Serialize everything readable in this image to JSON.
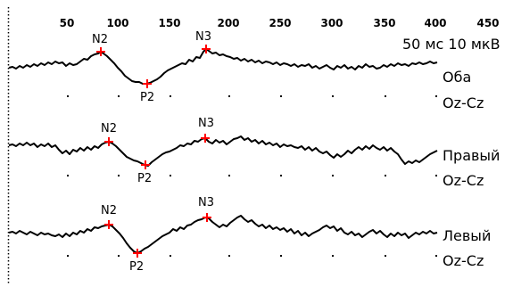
{
  "time_axis": {
    "ticks": [
      "50",
      "100",
      "150",
      "200",
      "250",
      "300",
      "350",
      "400",
      "450"
    ]
  },
  "scale_text": "50 мс 10 мкВ",
  "traces": [
    {
      "label": "Оба",
      "channel": "Oz-Cz",
      "peaks": [
        {
          "name": "N2",
          "color": "#cc0000"
        },
        {
          "name": "P2",
          "color": "#cc0000"
        },
        {
          "name": "N3",
          "color": "#cc0000"
        }
      ]
    },
    {
      "label": "Правый",
      "channel": "Oz-Cz",
      "peaks": [
        {
          "name": "N2",
          "color": "#cc0000"
        },
        {
          "name": "P2",
          "color": "#cc0000"
        },
        {
          "name": "N3",
          "color": "#cc0000"
        }
      ]
    },
    {
      "label": "Левый",
      "channel": "Oz-Cz",
      "peaks": [
        {
          "name": "N2",
          "color": "#cc0000"
        },
        {
          "name": "P2",
          "color": "#cc0000"
        },
        {
          "name": "N3",
          "color": "#cc0000"
        }
      ]
    }
  ],
  "colors": {
    "trace": "#000000",
    "marker": "#ff0000",
    "background": "#ffffff"
  }
}
